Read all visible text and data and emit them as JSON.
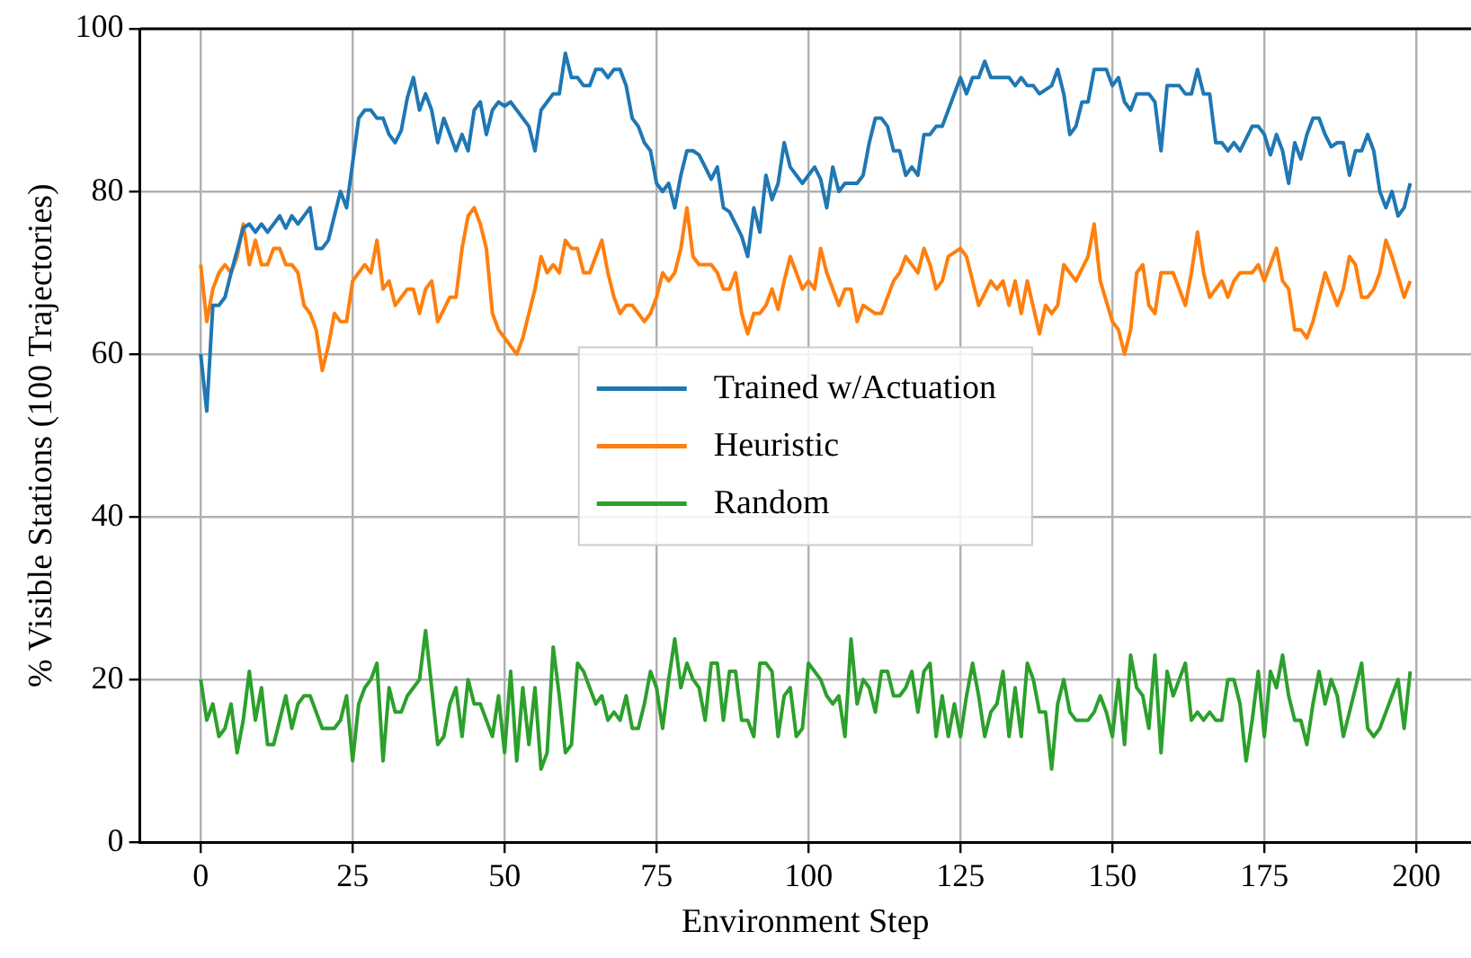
{
  "chart_data": {
    "type": "line",
    "xlabel": "Environment Step",
    "ylabel": "% Visible Stations (100 Trajectories)",
    "xlim": [
      -10,
      209
    ],
    "ylim": [
      0,
      100
    ],
    "xticks": [
      0,
      25,
      50,
      75,
      100,
      125,
      150,
      175,
      200
    ],
    "yticks": [
      0,
      20,
      40,
      60,
      80,
      100
    ],
    "grid": true,
    "legend": "center",
    "marker": "none",
    "line_style": "solid",
    "series": [
      {
        "name": "Trained w/Actuation",
        "color": "#1f77b4",
        "x": [
          0,
          1,
          2,
          3,
          4,
          5,
          7,
          8,
          9,
          10,
          11,
          13,
          14,
          15,
          16,
          18,
          19,
          20,
          21,
          23,
          24,
          26,
          27,
          28,
          29,
          30,
          31,
          32,
          33,
          34,
          35,
          36,
          37,
          38,
          39,
          40,
          41,
          42,
          43,
          44,
          45,
          46,
          47,
          48,
          49,
          50,
          51,
          52,
          54,
          55,
          56,
          57,
          58,
          59,
          60,
          61,
          62,
          63,
          64,
          65,
          66,
          67,
          68,
          69,
          70,
          71,
          72,
          73,
          74,
          75,
          76,
          77,
          78,
          79,
          80,
          81,
          82,
          83,
          84,
          85,
          86,
          87,
          88,
          89,
          90,
          91,
          92,
          93,
          94,
          95,
          96,
          97,
          98,
          99,
          100,
          101,
          102,
          103,
          104,
          105,
          106,
          108,
          109,
          110,
          111,
          112,
          113,
          114,
          115,
          116,
          117,
          118,
          119,
          120,
          121,
          122,
          123,
          124,
          125,
          126,
          127,
          128,
          129,
          130,
          133,
          134,
          135,
          136,
          137,
          138,
          140,
          141,
          142,
          143,
          144,
          145,
          146,
          147,
          149,
          150,
          151,
          152,
          153,
          154,
          156,
          157,
          158,
          159,
          161,
          162,
          163,
          164,
          165,
          166,
          167,
          168,
          169,
          170,
          171,
          173,
          174,
          175,
          176,
          177,
          178,
          179,
          180,
          181,
          182,
          183,
          184,
          185,
          186,
          187,
          188,
          189,
          190,
          191,
          192,
          193,
          194,
          195,
          196,
          197,
          198,
          199
        ],
        "values": [
          60,
          53,
          66,
          66,
          67,
          70,
          75.5,
          76,
          75,
          76,
          75,
          77,
          75.5,
          77,
          76,
          78,
          73,
          73,
          74,
          80,
          78,
          89,
          90,
          90,
          89,
          89,
          87,
          86,
          87.5,
          91.5,
          94,
          90,
          92,
          90,
          86,
          89,
          87,
          85,
          87,
          85,
          90,
          91,
          87,
          90,
          91,
          90.5,
          91,
          90,
          88,
          85,
          90,
          91,
          92,
          92,
          97,
          94,
          94,
          93,
          93,
          95,
          95,
          94,
          95,
          95,
          93,
          89,
          88,
          86,
          85,
          81,
          80,
          81,
          78,
          82,
          85,
          85,
          84.5,
          83,
          81.5,
          83,
          78,
          77.5,
          76,
          74.5,
          72,
          78,
          75,
          82,
          79,
          81,
          86,
          83,
          82,
          81,
          82,
          83,
          81.5,
          78,
          83,
          80,
          81,
          81,
          82,
          86,
          89,
          89,
          88,
          85,
          85,
          82,
          83,
          82,
          87,
          87,
          88,
          88,
          90,
          92,
          94,
          92,
          94,
          94,
          96,
          94,
          94,
          93,
          94,
          93,
          93,
          92,
          93,
          95,
          92,
          87,
          88,
          91,
          91,
          95,
          95,
          93,
          94,
          91,
          90,
          92,
          92,
          91,
          85,
          93,
          93,
          92,
          92,
          95,
          92,
          92,
          86,
          86,
          85,
          86,
          85,
          88,
          88,
          87,
          84.5,
          87,
          85,
          81,
          86,
          84,
          87,
          89,
          89,
          87,
          85.5,
          86,
          86,
          82,
          85,
          85,
          87,
          85,
          80,
          78,
          80,
          77,
          78,
          81
        ]
      },
      {
        "name": "Heuristic",
        "color": "#ff7f0e",
        "x": [
          0,
          1,
          2,
          3,
          4,
          5,
          6,
          7,
          8,
          9,
          10,
          11,
          12,
          13,
          14,
          15,
          16,
          17,
          18,
          19,
          20,
          21,
          22,
          23,
          24,
          25,
          26,
          27,
          28,
          29,
          30,
          31,
          32,
          33,
          34,
          35,
          36,
          37,
          38,
          39,
          40,
          41,
          42,
          43,
          44,
          45,
          46,
          47,
          48,
          49,
          50,
          52,
          53,
          54,
          55,
          56,
          57,
          58,
          59,
          60,
          61,
          62,
          63,
          64,
          65,
          66,
          67,
          68,
          69,
          70,
          71,
          72,
          73,
          74,
          75,
          76,
          77,
          78,
          79,
          80,
          81,
          82,
          84,
          85,
          86,
          87,
          88,
          89,
          90,
          91,
          92,
          93,
          94,
          95,
          96,
          97,
          98,
          99,
          100,
          101,
          102,
          103,
          105,
          106,
          107,
          108,
          109,
          111,
          112,
          114,
          115,
          116,
          118,
          119,
          120,
          121,
          122,
          123,
          125,
          126,
          127,
          128,
          130,
          131,
          132,
          133,
          134,
          135,
          136,
          138,
          139,
          140,
          141,
          142,
          143,
          144,
          146,
          147,
          148,
          150,
          151,
          152,
          153,
          154,
          155,
          156,
          157,
          158,
          160,
          161,
          162,
          163,
          164,
          165,
          166,
          168,
          169,
          170,
          171,
          173,
          174,
          175,
          176,
          177,
          178,
          179,
          180,
          181,
          182,
          183,
          184,
          185,
          186,
          187,
          188,
          189,
          190,
          191,
          192,
          193,
          194,
          195,
          196,
          198,
          199
        ],
        "values": [
          71,
          64,
          68,
          70,
          71,
          70,
          72,
          76,
          71,
          74,
          71,
          71,
          73,
          73,
          71,
          71,
          70,
          66,
          65,
          63,
          58,
          61,
          65,
          64,
          64,
          69,
          70,
          71,
          70,
          74,
          68,
          69,
          66,
          67,
          68,
          68,
          65,
          68,
          69,
          64,
          65.5,
          67,
          67,
          73,
          77,
          78,
          76,
          73,
          65,
          63,
          62,
          60,
          62,
          65,
          68,
          72,
          70,
          71,
          70,
          74,
          73,
          73,
          70,
          70,
          72,
          74,
          70,
          67,
          65,
          66,
          66,
          65,
          64,
          65,
          67,
          70,
          69,
          70,
          73,
          78,
          72,
          71,
          71,
          70,
          68,
          68,
          70,
          65,
          62.5,
          65,
          65,
          66,
          68,
          65.5,
          69,
          72,
          70,
          68,
          69,
          68,
          73,
          70,
          66,
          68,
          68,
          64,
          66,
          65,
          65,
          69,
          70,
          72,
          70,
          73,
          71,
          68,
          69,
          72,
          73,
          72,
          69,
          66,
          69,
          68,
          69,
          66,
          69,
          65,
          69,
          62.5,
          66,
          65,
          66,
          71,
          70,
          69,
          72,
          76,
          69,
          64,
          63,
          60,
          63,
          70,
          71,
          66,
          65,
          70,
          70,
          68,
          66,
          70,
          75,
          70,
          67,
          69,
          67,
          69,
          70,
          70,
          71,
          69,
          71,
          73,
          69,
          68,
          63,
          63,
          62,
          64,
          67,
          70,
          68,
          66,
          68,
          72,
          71,
          67,
          67,
          68,
          70,
          74,
          72,
          67,
          69
        ]
      },
      {
        "name": "Random",
        "color": "#2ca02c",
        "x": [
          0,
          1,
          2,
          3,
          4,
          5,
          6,
          7,
          8,
          9,
          10,
          11,
          12,
          13,
          14,
          15,
          16,
          17,
          18,
          19,
          20,
          22,
          23,
          24,
          25,
          26,
          27,
          28,
          29,
          30,
          31,
          32,
          33,
          34,
          35,
          36,
          37,
          38,
          39,
          40,
          41,
          42,
          43,
          44,
          45,
          46,
          47,
          48,
          49,
          50,
          51,
          52,
          53,
          54,
          55,
          56,
          57,
          58,
          59,
          60,
          61,
          62,
          63,
          64,
          65,
          66,
          67,
          68,
          69,
          70,
          71,
          72,
          73,
          74,
          75,
          76,
          77,
          78,
          79,
          80,
          81,
          82,
          83,
          84,
          85,
          86,
          87,
          88,
          89,
          90,
          91,
          92,
          93,
          94,
          95,
          96,
          97,
          98,
          99,
          100,
          101,
          102,
          103,
          104,
          105,
          106,
          107,
          108,
          109,
          110,
          111,
          112,
          113,
          114,
          115,
          116,
          117,
          118,
          119,
          120,
          121,
          122,
          123,
          124,
          125,
          126,
          127,
          128,
          129,
          130,
          131,
          132,
          133,
          134,
          135,
          136,
          137,
          138,
          139,
          140,
          141,
          142,
          143,
          144,
          146,
          147,
          148,
          149,
          150,
          151,
          152,
          153,
          154,
          155,
          156,
          157,
          158,
          159,
          160,
          161,
          162,
          163,
          164,
          165,
          166,
          167,
          168,
          169,
          170,
          171,
          172,
          173,
          174,
          175,
          176,
          177,
          178,
          179,
          180,
          181,
          182,
          183,
          184,
          185,
          186,
          187,
          188,
          189,
          190,
          191,
          192,
          193,
          194,
          195,
          196,
          197,
          198,
          199
        ],
        "values": [
          20,
          15,
          17,
          13,
          14,
          17,
          11,
          15,
          21,
          15,
          19,
          12,
          12,
          15,
          18,
          14,
          17,
          18,
          18,
          16,
          14,
          14,
          15,
          18,
          10,
          17,
          19,
          20,
          22,
          10,
          19,
          16,
          16,
          18,
          19,
          20,
          26,
          19,
          12,
          13,
          17,
          19,
          13,
          20,
          17,
          17,
          15,
          13,
          18,
          11,
          21,
          10,
          19,
          12,
          19,
          9,
          11,
          24,
          18,
          11,
          12,
          22,
          21,
          19,
          17,
          18,
          15,
          16,
          15,
          18,
          14,
          14,
          17,
          21,
          19,
          14,
          20,
          25,
          19,
          22,
          20,
          19,
          15,
          22,
          22,
          15,
          21,
          21,
          15,
          15,
          13,
          22,
          22,
          21,
          13,
          18,
          19,
          13,
          14,
          22,
          21,
          20,
          18,
          17,
          18,
          13,
          25,
          17,
          20,
          19,
          16,
          21,
          21,
          18,
          18,
          19,
          21,
          16,
          21,
          22,
          13,
          18,
          13,
          17,
          13,
          18,
          22,
          18,
          13,
          16,
          17,
          21,
          13,
          19,
          13,
          22,
          20,
          16,
          16,
          9,
          17,
          20,
          16,
          15,
          15,
          16,
          18,
          16,
          13,
          20,
          12,
          23,
          19,
          18,
          14,
          23,
          11,
          21,
          18,
          20,
          22,
          15,
          16,
          15,
          16,
          15,
          15,
          20,
          20,
          17,
          10,
          15,
          21,
          13,
          21,
          19,
          23,
          18,
          15,
          15,
          12,
          17,
          21,
          17,
          20,
          18,
          13,
          16,
          19,
          22,
          14,
          13,
          14,
          16,
          18,
          20,
          14,
          21
        ]
      }
    ]
  }
}
